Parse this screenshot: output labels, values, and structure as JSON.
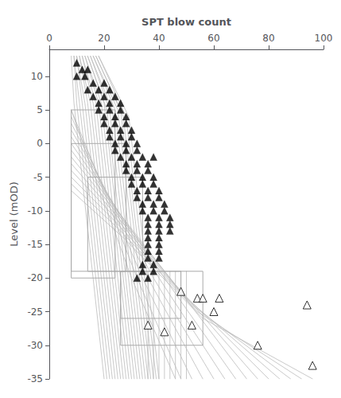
{
  "chart_data": {
    "type": "scatter",
    "xlabel": "SPT blow count",
    "ylabel": "Level (mOD)",
    "xlim": [
      0,
      100
    ],
    "ylim": [
      -35,
      14
    ],
    "xticks": [
      0,
      20,
      40,
      60,
      80,
      100
    ],
    "yticks": [
      -35,
      -30,
      -25,
      -20,
      -15,
      -10,
      -5,
      0,
      5,
      10
    ],
    "grid": false,
    "series": [
      {
        "type": "line",
        "color": "#bbbbbb",
        "x": [
          8,
          9,
          20
        ],
        "values": [
          13,
          6,
          -35
        ]
      },
      {
        "type": "line",
        "color": "#bbbbbb",
        "x": [
          9,
          10,
          21
        ],
        "values": [
          13,
          6,
          -35
        ]
      },
      {
        "type": "line",
        "color": "#bbbbbb",
        "x": [
          9,
          11,
          22
        ],
        "values": [
          13,
          6,
          -35
        ]
      },
      {
        "type": "line",
        "color": "#bbbbbb",
        "x": [
          10,
          12,
          23
        ],
        "values": [
          13,
          6,
          -35
        ]
      },
      {
        "type": "line",
        "color": "#bbbbbb",
        "x": [
          10,
          13,
          24
        ],
        "values": [
          13,
          6,
          -35
        ]
      },
      {
        "type": "line",
        "color": "#bbbbbb",
        "x": [
          11,
          14,
          25
        ],
        "values": [
          13,
          6,
          -35
        ]
      },
      {
        "type": "line",
        "color": "#bbbbbb",
        "x": [
          11,
          15,
          26
        ],
        "values": [
          13,
          6,
          -35
        ]
      },
      {
        "type": "line",
        "color": "#bbbbbb",
        "x": [
          12,
          16,
          27
        ],
        "values": [
          13,
          6,
          -35
        ]
      },
      {
        "type": "line",
        "color": "#bbbbbb",
        "x": [
          12,
          17,
          28
        ],
        "values": [
          13,
          6,
          -35
        ]
      },
      {
        "type": "line",
        "color": "#bbbbbb",
        "x": [
          13,
          18,
          29
        ],
        "values": [
          13,
          6,
          -35
        ]
      },
      {
        "type": "line",
        "color": "#bbbbbb",
        "x": [
          13,
          19,
          30
        ],
        "values": [
          13,
          6,
          -35
        ]
      },
      {
        "type": "line",
        "color": "#bbbbbb",
        "x": [
          14,
          20,
          31
        ],
        "values": [
          13,
          6,
          -35
        ]
      },
      {
        "type": "line",
        "color": "#bbbbbb",
        "x": [
          14,
          21,
          32
        ],
        "values": [
          13,
          5,
          -35
        ]
      },
      {
        "type": "line",
        "color": "#bbbbbb",
        "x": [
          15,
          22,
          33
        ],
        "values": [
          13,
          5,
          -35
        ]
      },
      {
        "type": "line",
        "color": "#bbbbbb",
        "x": [
          15,
          23,
          34
        ],
        "values": [
          13,
          5,
          -35
        ]
      },
      {
        "type": "line",
        "color": "#bbbbbb",
        "x": [
          16,
          24,
          35
        ],
        "values": [
          13,
          5,
          -35
        ]
      },
      {
        "type": "line",
        "color": "#bbbbbb",
        "x": [
          16,
          25,
          36
        ],
        "values": [
          13,
          5,
          -35
        ]
      },
      {
        "type": "line",
        "color": "#bbbbbb",
        "x": [
          17,
          26,
          37
        ],
        "values": [
          13,
          5,
          -35
        ]
      },
      {
        "type": "line",
        "color": "#bbbbbb",
        "x": [
          17,
          27,
          38
        ],
        "values": [
          13,
          4,
          -35
        ]
      },
      {
        "type": "line",
        "color": "#bbbbbb",
        "x": [
          18,
          28,
          39
        ],
        "values": [
          13,
          4,
          -35
        ]
      },
      {
        "type": "line",
        "color": "#bbbbbb",
        "x": [
          18,
          29,
          40
        ],
        "values": [
          13,
          4,
          -35
        ]
      },
      {
        "type": "line",
        "color": "#bbbbbb",
        "x": [
          8,
          14,
          30,
          46
        ],
        "values": [
          5,
          -2,
          -20,
          -35
        ]
      },
      {
        "type": "line",
        "color": "#bbbbbb",
        "x": [
          8,
          15,
          32,
          48
        ],
        "values": [
          5,
          -2,
          -20,
          -35
        ]
      },
      {
        "type": "line",
        "color": "#bbbbbb",
        "x": [
          8,
          16,
          34,
          52
        ],
        "values": [
          4,
          -3,
          -20,
          -35
        ]
      },
      {
        "type": "line",
        "color": "#bbbbbb",
        "x": [
          8,
          17,
          36,
          56
        ],
        "values": [
          3,
          -4,
          -20,
          -35
        ]
      },
      {
        "type": "line",
        "color": "#bbbbbb",
        "x": [
          8,
          18,
          38,
          60
        ],
        "values": [
          2,
          -5,
          -20,
          -35
        ]
      },
      {
        "type": "line",
        "color": "#bbbbbb",
        "x": [
          8,
          19,
          40,
          64
        ],
        "values": [
          1,
          -6,
          -20,
          -35
        ]
      },
      {
        "type": "line",
        "color": "#bbbbbb",
        "x": [
          8,
          20,
          42,
          68
        ],
        "values": [
          0,
          -7,
          -20,
          -35
        ]
      },
      {
        "type": "line",
        "color": "#bbbbbb",
        "x": [
          8,
          21,
          44,
          72
        ],
        "values": [
          -1,
          -8,
          -20,
          -35
        ]
      },
      {
        "type": "line",
        "color": "#bbbbbb",
        "x": [
          8,
          22,
          46,
          76
        ],
        "values": [
          -2,
          -9,
          -21,
          -35
        ]
      },
      {
        "type": "line",
        "color": "#bbbbbb",
        "x": [
          8,
          23,
          48,
          80
        ],
        "values": [
          -3,
          -10,
          -22,
          -35
        ]
      },
      {
        "type": "line",
        "color": "#bbbbbb",
        "x": [
          8,
          24,
          50,
          84
        ],
        "values": [
          -4,
          -11,
          -23,
          -35
        ]
      },
      {
        "type": "line",
        "color": "#bbbbbb",
        "x": [
          8,
          25,
          52,
          88
        ],
        "values": [
          -5,
          -12,
          -24,
          -35
        ]
      },
      {
        "type": "line",
        "color": "#bbbbbb",
        "x": [
          8,
          26,
          54,
          92
        ],
        "values": [
          -6,
          -13,
          -25,
          -35
        ]
      },
      {
        "type": "line",
        "color": "#bbbbbb",
        "x": [
          8,
          27,
          56,
          96
        ],
        "values": [
          -7,
          -14,
          -26,
          -35
        ]
      },
      {
        "type": "line",
        "color": "#bbbbbb",
        "x": [
          36,
          36
        ],
        "values": [
          -19,
          -35
        ]
      },
      {
        "type": "line",
        "color": "#bbbbbb",
        "x": [
          38,
          38
        ],
        "values": [
          -19,
          -35
        ]
      },
      {
        "type": "line",
        "color": "#bbbbbb",
        "x": [
          40,
          40
        ],
        "values": [
          -19,
          -35
        ]
      },
      {
        "type": "line",
        "color": "#bbbbbb",
        "x": [
          42,
          42
        ],
        "values": [
          -19,
          -35
        ]
      },
      {
        "type": "line",
        "color": "#bbbbbb",
        "x": [
          44,
          44
        ],
        "values": [
          -19,
          -35
        ]
      },
      {
        "type": "line",
        "color": "#bbbbbb",
        "x": [
          46,
          46
        ],
        "values": [
          -19,
          -35
        ]
      },
      {
        "type": "line",
        "color": "#bbbbbb",
        "x": [
          48,
          48
        ],
        "values": [
          -19,
          -35
        ]
      },
      {
        "type": "line",
        "color": "#bbbbbb",
        "x": [
          50,
          50
        ],
        "values": [
          -19,
          -35
        ]
      },
      {
        "type": "rect",
        "color": "#aaaaaa",
        "x": [
          8,
          24
        ],
        "values": [
          -20,
          5
        ]
      },
      {
        "type": "rect",
        "color": "#aaaaaa",
        "x": [
          8,
          28
        ],
        "values": [
          -19,
          0
        ]
      },
      {
        "type": "rect",
        "color": "#aaaaaa",
        "x": [
          14,
          34
        ],
        "values": [
          -19,
          -5
        ]
      },
      {
        "type": "rect",
        "color": "#aaaaaa",
        "x": [
          26,
          48
        ],
        "values": [
          -26,
          -19
        ]
      },
      {
        "type": "rect",
        "color": "#aaaaaa",
        "x": [
          26,
          56
        ],
        "values": [
          -30,
          -19
        ]
      },
      {
        "type": "scatter",
        "marker": "triangle",
        "color": "#000000",
        "values": [
          [
            10,
            12
          ],
          [
            12,
            11
          ],
          [
            14,
            11
          ],
          [
            10,
            10
          ],
          [
            13,
            10
          ],
          [
            16,
            9
          ],
          [
            20,
            9
          ],
          [
            14,
            8
          ],
          [
            18,
            8
          ],
          [
            22,
            8
          ],
          [
            16,
            7
          ],
          [
            20,
            7
          ],
          [
            24,
            7
          ],
          [
            18,
            6
          ],
          [
            22,
            6
          ],
          [
            26,
            6
          ],
          [
            18,
            5
          ],
          [
            22,
            5
          ],
          [
            26,
            5
          ],
          [
            20,
            4
          ],
          [
            24,
            4
          ],
          [
            28,
            4
          ],
          [
            20,
            3
          ],
          [
            24,
            3
          ],
          [
            28,
            3
          ],
          [
            22,
            2
          ],
          [
            26,
            2
          ],
          [
            30,
            2
          ],
          [
            22,
            1
          ],
          [
            26,
            1
          ],
          [
            30,
            1
          ],
          [
            24,
            0
          ],
          [
            28,
            0
          ],
          [
            32,
            0
          ],
          [
            24,
            -1
          ],
          [
            28,
            -1
          ],
          [
            32,
            -1
          ],
          [
            26,
            -2
          ],
          [
            30,
            -2
          ],
          [
            34,
            -2
          ],
          [
            28,
            -3
          ],
          [
            32,
            -3
          ],
          [
            36,
            -3
          ],
          [
            28,
            -4
          ],
          [
            32,
            -4
          ],
          [
            36,
            -4
          ],
          [
            30,
            -5
          ],
          [
            34,
            -5
          ],
          [
            38,
            -5
          ],
          [
            30,
            -6
          ],
          [
            34,
            -6
          ],
          [
            38,
            -6
          ],
          [
            32,
            -7
          ],
          [
            36,
            -7
          ],
          [
            40,
            -7
          ],
          [
            32,
            -8
          ],
          [
            36,
            -8
          ],
          [
            40,
            -8
          ],
          [
            34,
            -9
          ],
          [
            38,
            -9
          ],
          [
            42,
            -9
          ],
          [
            34,
            -10
          ],
          [
            38,
            -10
          ],
          [
            42,
            -10
          ],
          [
            36,
            -11
          ],
          [
            40,
            -11
          ],
          [
            44,
            -11
          ],
          [
            36,
            -12
          ],
          [
            40,
            -12
          ],
          [
            44,
            -12
          ],
          [
            36,
            -13
          ],
          [
            40,
            -13
          ],
          [
            44,
            -13
          ],
          [
            36,
            -14
          ],
          [
            40,
            -14
          ],
          [
            38,
            -2
          ],
          [
            36,
            -15
          ],
          [
            40,
            -15
          ],
          [
            36,
            -16
          ],
          [
            40,
            -16
          ],
          [
            36,
            -17
          ],
          [
            40,
            -17
          ],
          [
            34,
            -18
          ],
          [
            38,
            -18
          ],
          [
            34,
            -19
          ],
          [
            38,
            -19
          ],
          [
            32,
            -20
          ],
          [
            36,
            -20
          ]
        ]
      },
      {
        "type": "scatter",
        "marker": "open_triangle",
        "color": "#000000",
        "values": [
          [
            36,
            -27
          ],
          [
            48,
            -22
          ],
          [
            54,
            -23
          ],
          [
            56,
            -23
          ],
          [
            42,
            -28
          ],
          [
            52,
            -27
          ],
          [
            60,
            -25
          ],
          [
            62,
            -23
          ],
          [
            76,
            -30
          ],
          [
            94,
            -24
          ],
          [
            96,
            -33
          ]
        ]
      }
    ]
  }
}
